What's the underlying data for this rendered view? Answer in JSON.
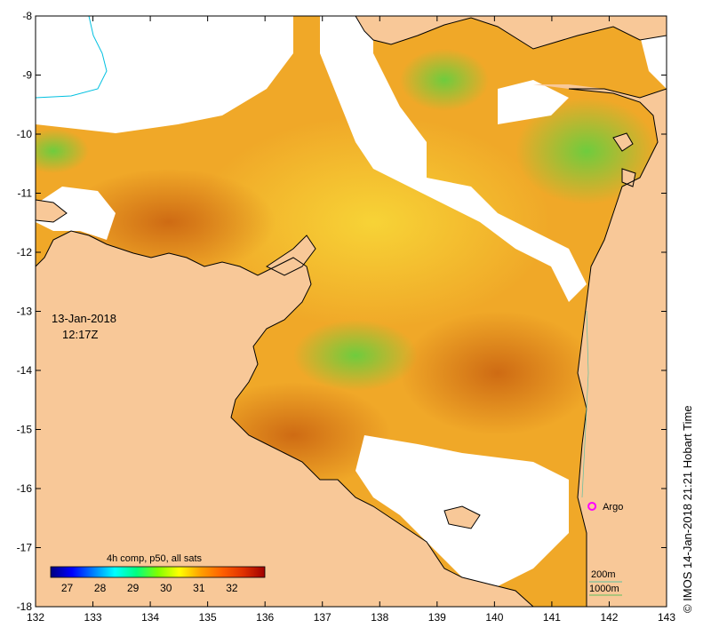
{
  "map": {
    "x_ticks": [
      "132",
      "133",
      "134",
      "135",
      "136",
      "137",
      "138",
      "139",
      "140",
      "141",
      "142",
      "143"
    ],
    "y_ticks": [
      "-8",
      "-9",
      "-10",
      "-11",
      "-12",
      "-13",
      "-14",
      "-15",
      "-16",
      "-17",
      "-18"
    ],
    "xlim": [
      132,
      143
    ],
    "ylim": [
      -18,
      -8
    ],
    "date_label": "13-Jan-2018",
    "time_label": "12:17Z",
    "argo_label": "Argo",
    "argo_position": [
      141.7,
      -16.3
    ],
    "depth_label_1": "200m",
    "depth_label_2": "1000m",
    "credit": "© IMOS 14-Jan-2018 21:21 Hobart Time"
  },
  "colorbar": {
    "title": "4h comp, p50, all sats",
    "ticks": [
      "27",
      "28",
      "29",
      "30",
      "31",
      "32"
    ],
    "range": [
      26.5,
      33
    ],
    "colors": [
      "#000080",
      "#0000ff",
      "#0080ff",
      "#00ffff",
      "#00ff80",
      "#80ff00",
      "#ffff00",
      "#ffa000",
      "#ff6000",
      "#e03000",
      "#a00000"
    ]
  },
  "colors": {
    "land": "#f8c898",
    "sea_warm": "#f0a828",
    "sea_hot": "#d88020",
    "sea_yellow": "#f5c830",
    "sea_green": "#a8e040",
    "cloud": "#ffffff",
    "argo": "#ff00ff",
    "river": "#00c0e0"
  }
}
